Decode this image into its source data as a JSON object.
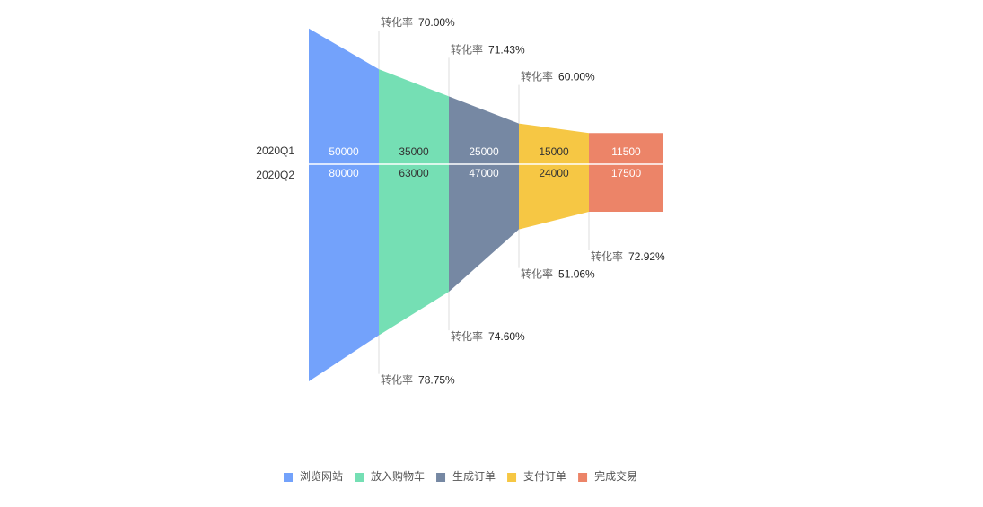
{
  "chart_data": {
    "type": "funnel",
    "categories": [
      "浏览网站",
      "放入购物车",
      "生成订单",
      "支付订单",
      "完成交易"
    ],
    "colors": [
      "#73a2fb",
      "#75dfb4",
      "#7688a3",
      "#f6c744",
      "#ec8468"
    ],
    "label_colors": [
      "#ffffff",
      "#333333",
      "#ffffff",
      "#333333",
      "#ffffff"
    ],
    "conversion_label": "转化率",
    "series": [
      {
        "name": "2020Q1",
        "values": [
          50000,
          35000,
          25000,
          15000,
          11500
        ],
        "conversion": [
          70,
          71.43,
          60,
          null
        ],
        "conversion_labels": [
          "70.00%",
          "71.43%",
          "60.00%",
          null
        ]
      },
      {
        "name": "2020Q2",
        "values": [
          80000,
          63000,
          47000,
          24000,
          17500
        ],
        "conversion": [
          78.75,
          74.6,
          51.06,
          72.92
        ],
        "conversion_labels": [
          "78.75%",
          "74.60%",
          "51.06%",
          "72.92%"
        ]
      }
    ]
  }
}
